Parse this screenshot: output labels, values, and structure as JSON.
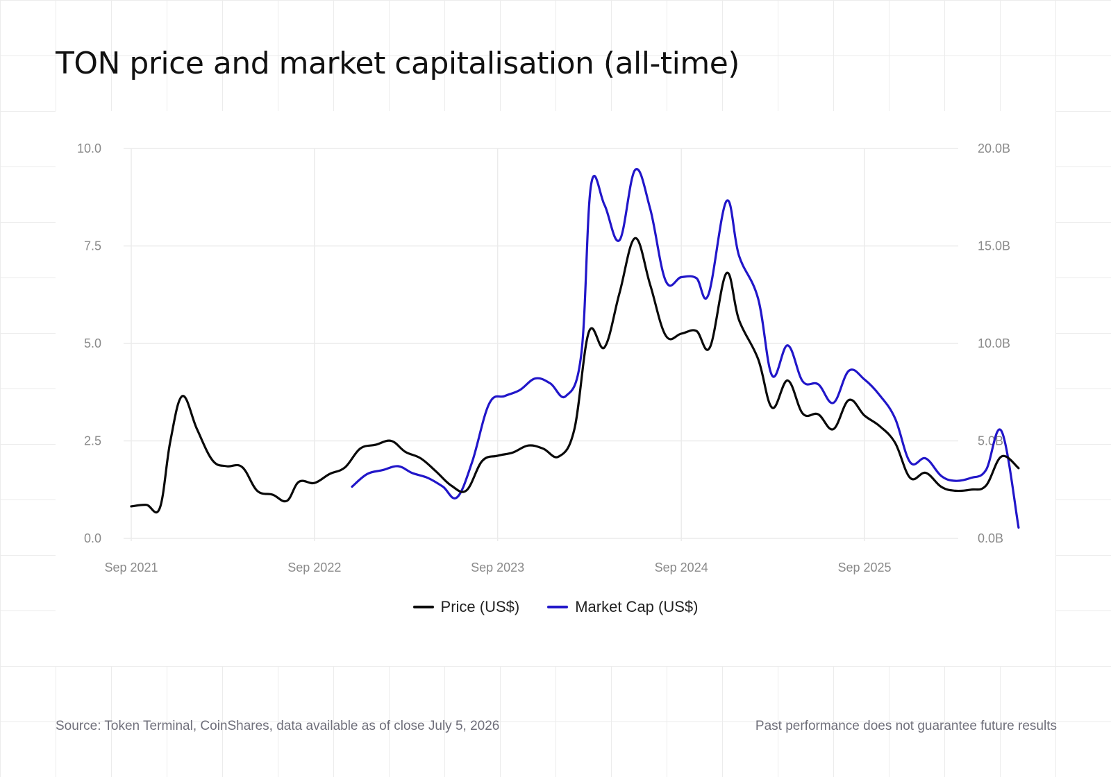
{
  "title": "TON price and market capitalisation (all-time)",
  "footer": {
    "source": "Source: Token Terminal, CoinShares, data available as of close July 5, 2026",
    "disclaimer": "Past performance does not guarantee future results"
  },
  "chart_data": {
    "type": "line",
    "title": "TON price and market capitalisation (all-time)",
    "grid": true,
    "legend_position": "bottom-center",
    "x_axis": {
      "type": "date",
      "ticks": [
        {
          "value": "2021-09-01",
          "label": "Sep 2021"
        },
        {
          "value": "2022-09-01",
          "label": "Sep 2022"
        },
        {
          "value": "2023-09-01",
          "label": "Sep 2023"
        },
        {
          "value": "2024-09-01",
          "label": "Sep 2024"
        },
        {
          "value": "2025-09-01",
          "label": "Sep 2025"
        }
      ],
      "range": [
        "2021-09-01",
        "2026-07-05"
      ]
    },
    "y_axis_left": {
      "range": [
        0,
        10
      ],
      "ticks": [
        {
          "value": 0,
          "label": "0.0"
        },
        {
          "value": 2.5,
          "label": "2.5"
        },
        {
          "value": 5,
          "label": "5.0"
        },
        {
          "value": 7.5,
          "label": "7.5"
        },
        {
          "value": 10,
          "label": "10.0"
        }
      ]
    },
    "y_axis_right": {
      "range": [
        0,
        20
      ],
      "ticks": [
        {
          "value": 0,
          "label": "0.0B"
        },
        {
          "value": 5,
          "label": "5.0B"
        },
        {
          "value": 10,
          "label": "10.0B"
        },
        {
          "value": 15,
          "label": "15.0B"
        },
        {
          "value": 20,
          "label": "20.0B"
        }
      ]
    },
    "series": [
      {
        "name": "Price (US$)",
        "axis": "left",
        "color": "#0a0a0a",
        "points": [
          [
            "2021-09-01",
            0.82
          ],
          [
            "2021-10-01",
            0.86
          ],
          [
            "2021-10-28",
            0.78
          ],
          [
            "2021-11-18",
            2.5
          ],
          [
            "2021-12-12",
            3.65
          ],
          [
            "2022-01-10",
            2.8
          ],
          [
            "2022-02-10",
            2.0
          ],
          [
            "2022-03-10",
            1.85
          ],
          [
            "2022-04-10",
            1.83
          ],
          [
            "2022-05-10",
            1.22
          ],
          [
            "2022-06-10",
            1.12
          ],
          [
            "2022-07-08",
            0.96
          ],
          [
            "2022-08-01",
            1.45
          ],
          [
            "2022-09-01",
            1.42
          ],
          [
            "2022-10-01",
            1.65
          ],
          [
            "2022-11-01",
            1.82
          ],
          [
            "2022-12-01",
            2.3
          ],
          [
            "2023-01-01",
            2.4
          ],
          [
            "2023-02-01",
            2.5
          ],
          [
            "2023-03-01",
            2.22
          ],
          [
            "2023-04-01",
            2.05
          ],
          [
            "2023-05-01",
            1.72
          ],
          [
            "2023-06-01",
            1.35
          ],
          [
            "2023-07-01",
            1.23
          ],
          [
            "2023-08-01",
            1.98
          ],
          [
            "2023-09-01",
            2.12
          ],
          [
            "2023-10-01",
            2.2
          ],
          [
            "2023-11-01",
            2.38
          ],
          [
            "2023-12-01",
            2.3
          ],
          [
            "2024-01-01",
            2.1
          ],
          [
            "2024-02-01",
            2.8
          ],
          [
            "2024-03-01",
            5.3
          ],
          [
            "2024-04-01",
            4.9
          ],
          [
            "2024-05-01",
            6.3
          ],
          [
            "2024-06-01",
            7.7
          ],
          [
            "2024-07-01",
            6.5
          ],
          [
            "2024-08-01",
            5.2
          ],
          [
            "2024-09-01",
            5.25
          ],
          [
            "2024-10-01",
            5.32
          ],
          [
            "2024-10-28",
            4.9
          ],
          [
            "2024-11-30",
            6.8
          ],
          [
            "2024-12-25",
            5.6
          ],
          [
            "2025-02-01",
            4.6
          ],
          [
            "2025-03-01",
            3.35
          ],
          [
            "2025-04-01",
            4.05
          ],
          [
            "2025-05-01",
            3.2
          ],
          [
            "2025-06-01",
            3.18
          ],
          [
            "2025-07-01",
            2.8
          ],
          [
            "2025-08-01",
            3.55
          ],
          [
            "2025-09-01",
            3.15
          ],
          [
            "2025-10-01",
            2.88
          ],
          [
            "2025-11-01",
            2.45
          ],
          [
            "2025-12-01",
            1.55
          ],
          [
            "2026-01-01",
            1.68
          ],
          [
            "2026-02-01",
            1.32
          ],
          [
            "2026-03-01",
            1.22
          ],
          [
            "2026-04-01",
            1.25
          ],
          [
            "2026-05-01",
            1.35
          ],
          [
            "2026-06-01",
            2.1
          ],
          [
            "2026-07-05",
            1.8
          ]
        ]
      },
      {
        "name": "Market Cap (US$)",
        "axis": "right",
        "color": "#2116c9",
        "points": [
          [
            "2022-11-15",
            2.65
          ],
          [
            "2022-12-15",
            3.3
          ],
          [
            "2023-01-15",
            3.5
          ],
          [
            "2023-02-15",
            3.7
          ],
          [
            "2023-03-15",
            3.35
          ],
          [
            "2023-04-15",
            3.1
          ],
          [
            "2023-05-15",
            2.65
          ],
          [
            "2023-06-12",
            2.1
          ],
          [
            "2023-07-12",
            3.9
          ],
          [
            "2023-08-15",
            6.9
          ],
          [
            "2023-09-15",
            7.3
          ],
          [
            "2023-10-15",
            7.6
          ],
          [
            "2023-11-15",
            8.2
          ],
          [
            "2023-12-15",
            7.95
          ],
          [
            "2024-01-15",
            7.3
          ],
          [
            "2024-02-15",
            9.5
          ],
          [
            "2024-03-05",
            18.1
          ],
          [
            "2024-04-01",
            17.1
          ],
          [
            "2024-05-01",
            15.3
          ],
          [
            "2024-06-01",
            18.9
          ],
          [
            "2024-07-01",
            16.9
          ],
          [
            "2024-08-01",
            13.2
          ],
          [
            "2024-09-01",
            13.4
          ],
          [
            "2024-10-01",
            13.35
          ],
          [
            "2024-10-25",
            12.5
          ],
          [
            "2024-11-30",
            17.3
          ],
          [
            "2024-12-25",
            14.5
          ],
          [
            "2025-02-01",
            12.3
          ],
          [
            "2025-03-01",
            8.35
          ],
          [
            "2025-04-01",
            9.9
          ],
          [
            "2025-05-01",
            8.05
          ],
          [
            "2025-06-01",
            7.9
          ],
          [
            "2025-07-01",
            6.95
          ],
          [
            "2025-08-01",
            8.6
          ],
          [
            "2025-09-01",
            8.15
          ],
          [
            "2025-10-01",
            7.35
          ],
          [
            "2025-11-01",
            6.15
          ],
          [
            "2025-12-01",
            3.9
          ],
          [
            "2026-01-01",
            4.1
          ],
          [
            "2026-02-01",
            3.2
          ],
          [
            "2026-03-01",
            2.95
          ],
          [
            "2026-04-01",
            3.1
          ],
          [
            "2026-05-01",
            3.5
          ],
          [
            "2026-06-01",
            5.5
          ],
          [
            "2026-07-05",
            0.55
          ]
        ]
      }
    ]
  }
}
